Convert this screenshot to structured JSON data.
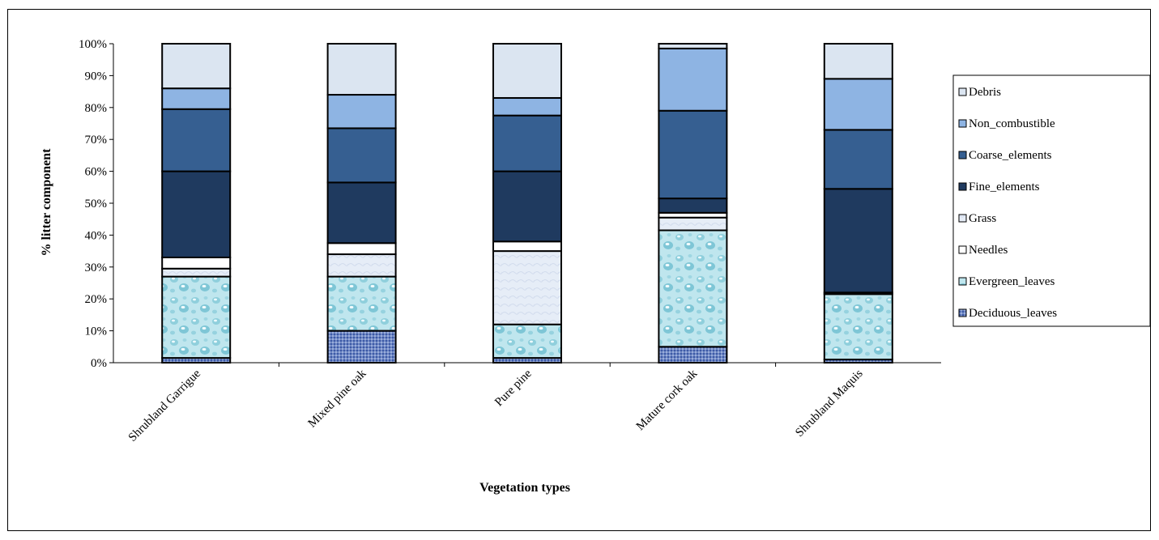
{
  "chart_data": {
    "type": "bar",
    "stacked": true,
    "normalized_percent": true,
    "title": "",
    "xlabel": "Vegetation types",
    "ylabel": "% litter component",
    "ylim": [
      0,
      100
    ],
    "y_ticks": [
      "0%",
      "10%",
      "20%",
      "30%",
      "40%",
      "50%",
      "60%",
      "70%",
      "80%",
      "90%",
      "100%"
    ],
    "grid": false,
    "legend_position": "right",
    "categories": [
      "Shrubland Garrigue",
      "Mixed pine oak",
      "Pure pine",
      "Mature cork oak",
      "Shrubland Maquis"
    ],
    "series": [
      {
        "name": "Deciduous_leaves",
        "color": "#6f87c4",
        "pattern": "crosshatch-blue",
        "values": [
          1.5,
          10,
          1.5,
          5,
          1
        ]
      },
      {
        "name": "Evergreen_leaves",
        "color": "#bfe6ee",
        "pattern": "water-drops",
        "values": [
          25.5,
          17,
          10.5,
          36.5,
          20.5
        ]
      },
      {
        "name": "Grass",
        "color": "#e6edf7",
        "pattern": "light",
        "values": [
          2.5,
          7,
          23,
          4,
          0
        ]
      },
      {
        "name": "Needles",
        "color": "#ffffff",
        "pattern": "none",
        "values": [
          3.5,
          3.5,
          3,
          1.5,
          0.5
        ]
      },
      {
        "name": "Fine_elements",
        "color": "#1f3a5f",
        "pattern": "none",
        "values": [
          27,
          19,
          22,
          4.5,
          32.5
        ]
      },
      {
        "name": "Coarse_elements",
        "color": "#365f91",
        "pattern": "none",
        "values": [
          19.5,
          17,
          17.5,
          27.5,
          18.5
        ]
      },
      {
        "name": "Non_combustible",
        "color": "#8eb4e3",
        "pattern": "none",
        "values": [
          6.5,
          10.5,
          5.5,
          19.5,
          16
        ]
      },
      {
        "name": "Debris",
        "color": "#dbe5f1",
        "pattern": "none",
        "values": [
          14,
          16,
          17,
          1.5,
          11
        ]
      }
    ],
    "legend_order": [
      "Debris",
      "Non_combustible",
      "Coarse_elements",
      "Fine_elements",
      "Grass",
      "Needles",
      "Evergreen_leaves",
      "Deciduous_leaves"
    ]
  }
}
